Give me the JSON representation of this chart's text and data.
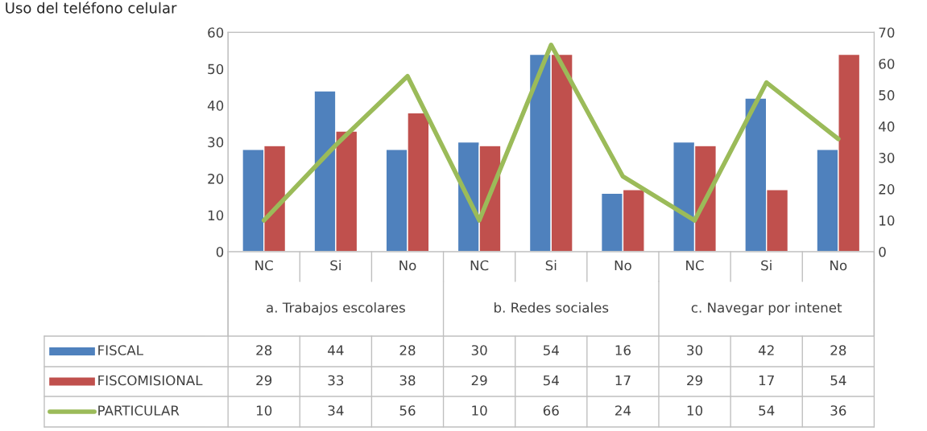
{
  "chart_data": {
    "type": "bar",
    "title": "Uso del teléfono celular",
    "categories": [
      "NC",
      "Si",
      "No",
      "NC",
      "Si",
      "No",
      "NC",
      "Si",
      "No"
    ],
    "annotations": [
      "a. Trabajos escolares",
      "b. Redes sociales",
      "c. Navegar por intenet"
    ],
    "series": [
      {
        "name": "FISCAL",
        "color": "#4f81bd",
        "values": [
          28,
          44,
          28,
          30,
          54,
          16,
          30,
          42,
          28
        ]
      },
      {
        "name": "FISCOMISIONAL",
        "color": "#c0504d",
        "values": [
          29,
          33,
          38,
          29,
          54,
          17,
          29,
          17,
          54
        ]
      },
      {
        "name": "PARTICULAR",
        "color": "#9bbb59",
        "type": "line",
        "axis": "y2",
        "values": [
          10,
          34,
          56,
          10,
          66,
          24,
          10,
          54,
          36
        ]
      }
    ],
    "ylim": [
      0,
      60
    ],
    "yticks": [
      0,
      10,
      20,
      30,
      40,
      50,
      60
    ],
    "y2lim": [
      0,
      70
    ],
    "y2ticks": [
      0,
      10,
      20,
      30,
      40,
      50,
      60,
      70
    ],
    "data_labels": true,
    "legend": "bottom left",
    "grid": false,
    "marker": "none",
    "line_style": "solid"
  }
}
